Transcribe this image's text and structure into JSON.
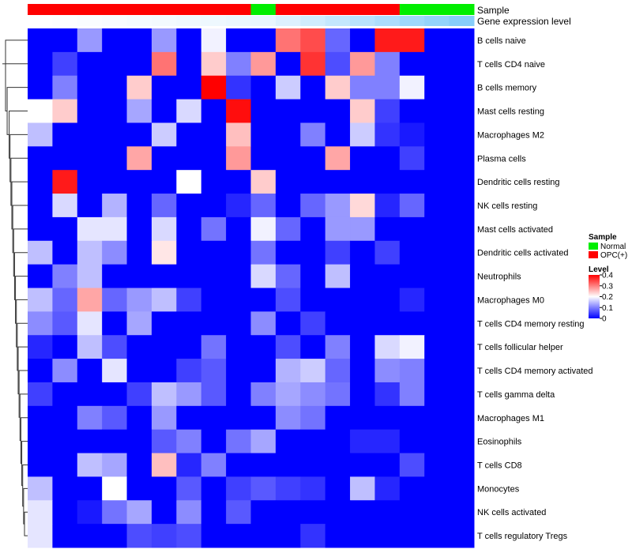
{
  "chart_data": {
    "type": "heatmap",
    "annotation_labels": {
      "sample": "Sample",
      "expression": "Gene expression level"
    },
    "rows": [
      "B cells naive",
      "T cells CD4 naive",
      "B cells memory",
      "Mast cells resting",
      "Macrophages M2",
      "Plasma cells",
      "Dendritic cells resting",
      "NK cells resting",
      "Mast cells activated",
      "Dendritic cells activated",
      "Neutrophils",
      "Macrophages M0",
      "T cells CD4 memory resting",
      "T cells follicular helper",
      "T cells CD4 memory activated",
      "T cells gamma delta",
      "Macrophages M1",
      "Eosinophils",
      "T cells CD8",
      "Monocytes",
      "NK cells activated",
      "T cells regulatory  Tregs"
    ],
    "sample_groups": [
      "OPC(+)",
      "OPC(+)",
      "OPC(+)",
      "OPC(+)",
      "OPC(+)",
      "OPC(+)",
      "OPC(+)",
      "OPC(+)",
      "OPC(+)",
      "Normal",
      "OPC(+)",
      "OPC(+)",
      "OPC(+)",
      "OPC(+)",
      "OPC(+)",
      "Normal",
      "Normal",
      "Normal"
    ],
    "expression_level": [
      0.1,
      0.2,
      0.3,
      0.4,
      0.5,
      0.6,
      0.7,
      0.8,
      0.9,
      1.0,
      1.5,
      2.0,
      2.5,
      3.0,
      3.5,
      4.0,
      4.5,
      5.0
    ],
    "values": [
      [
        0.0,
        0.0,
        0.12,
        0.0,
        0.0,
        0.12,
        0.0,
        0.19,
        0.0,
        0.0,
        0.31,
        0.34,
        0.08,
        0.0,
        0.38,
        0.38,
        0,
        0
      ],
      [
        0.0,
        0.05,
        0.0,
        0.0,
        0.0,
        0.31,
        0.0,
        0.24,
        0.1,
        0.28,
        0.0,
        0.36,
        0.06,
        0.28,
        0.1,
        0.0,
        0,
        0
      ],
      [
        0.0,
        0.1,
        0.0,
        0.0,
        0.24,
        0.0,
        0.0,
        0.4,
        0.04,
        0.0,
        0.16,
        0.0,
        0.24,
        0.1,
        0.1,
        0.19,
        0,
        0
      ],
      [
        0.2,
        0.24,
        0.0,
        0.0,
        0.13,
        0.0,
        0.17,
        0.0,
        0.39,
        0.0,
        0.0,
        0.0,
        0.0,
        0.24,
        0.05,
        0.0,
        0,
        0
      ],
      [
        0.15,
        0.0,
        0.0,
        0.0,
        0.0,
        0.16,
        0.0,
        0.0,
        0.25,
        0.0,
        0.0,
        0.1,
        0.0,
        0.16,
        0.04,
        0.02,
        0,
        0
      ],
      [
        0.0,
        0.0,
        0.0,
        0.0,
        0.27,
        0.0,
        0.0,
        0.0,
        0.28,
        0.0,
        0.0,
        0.0,
        0.27,
        0.0,
        0.0,
        0.05,
        0,
        0
      ],
      [
        0.0,
        0.38,
        0.0,
        0.0,
        0.0,
        0.0,
        0.2,
        0.0,
        0.0,
        0.24,
        0.0,
        0.0,
        0.0,
        0.0,
        0.0,
        0.0,
        0,
        0
      ],
      [
        0.0,
        0.17,
        0.0,
        0.14,
        0.0,
        0.08,
        0.0,
        0.0,
        0.03,
        0.08,
        0.0,
        0.08,
        0.12,
        0.23,
        0.03,
        0.08,
        0,
        0
      ],
      [
        0.0,
        0.0,
        0.18,
        0.18,
        0.0,
        0.17,
        0.0,
        0.09,
        0.0,
        0.19,
        0.08,
        0.0,
        0.12,
        0.12,
        0.0,
        0.0,
        0,
        0
      ],
      [
        0.15,
        0.0,
        0.15,
        0.11,
        0.0,
        0.22,
        0.0,
        0.0,
        0.0,
        0.09,
        0.0,
        0.0,
        0.05,
        0.0,
        0.05,
        0.0,
        0,
        0
      ],
      [
        0.0,
        0.1,
        0.15,
        0.0,
        0.0,
        0.0,
        0.0,
        0.0,
        0.0,
        0.17,
        0.08,
        0.0,
        0.15,
        0.0,
        0.0,
        0.0,
        0,
        0
      ],
      [
        0.15,
        0.08,
        0.27,
        0.08,
        0.12,
        0.15,
        0.05,
        0.0,
        0.0,
        0.0,
        0.06,
        0.0,
        0.0,
        0.0,
        0.0,
        0.03,
        0,
        0
      ],
      [
        0.11,
        0.07,
        0.18,
        0.0,
        0.13,
        0.0,
        0.0,
        0.0,
        0.0,
        0.11,
        0.0,
        0.05,
        0.0,
        0.0,
        0.0,
        0.0,
        0,
        0
      ],
      [
        0.03,
        0.0,
        0.15,
        0.06,
        0.0,
        0.0,
        0.0,
        0.09,
        0.0,
        0.0,
        0.06,
        0.0,
        0.1,
        0.0,
        0.17,
        0.19,
        0,
        0
      ],
      [
        0.0,
        0.11,
        0.0,
        0.18,
        0.0,
        0.0,
        0.05,
        0.07,
        0.0,
        0.0,
        0.14,
        0.16,
        0.08,
        0.0,
        0.11,
        0.1,
        0,
        0
      ],
      [
        0.05,
        0.0,
        0.0,
        0.0,
        0.05,
        0.15,
        0.12,
        0.07,
        0.0,
        0.1,
        0.13,
        0.11,
        0.09,
        0.0,
        0.04,
        0.1,
        0,
        0
      ],
      [
        0.0,
        0.0,
        0.1,
        0.07,
        0.0,
        0.12,
        0.0,
        0.0,
        0.0,
        0.0,
        0.11,
        0.09,
        0.0,
        0.0,
        0.0,
        0.0,
        0,
        0
      ],
      [
        0.0,
        0.0,
        0.0,
        0.0,
        0.0,
        0.07,
        0.1,
        0.0,
        0.09,
        0.13,
        0.0,
        0.0,
        0.0,
        0.03,
        0.03,
        0.0,
        0,
        0
      ],
      [
        0.0,
        0.0,
        0.15,
        0.13,
        0.0,
        0.25,
        0.03,
        0.1,
        0.0,
        0.0,
        0.0,
        0.0,
        0.0,
        0.0,
        0.0,
        0.06,
        0,
        0
      ],
      [
        0.15,
        0.0,
        0.0,
        0.2,
        0.0,
        0.0,
        0.07,
        0.0,
        0.05,
        0.07,
        0.05,
        0.04,
        0.0,
        0.15,
        0.03,
        0.0,
        0,
        0
      ],
      [
        0.18,
        0.0,
        0.02,
        0.09,
        0.13,
        0.0,
        0.11,
        0.0,
        0.07,
        0.0,
        0.0,
        0.0,
        0.0,
        0.0,
        0.0,
        0.0,
        0,
        0
      ],
      [
        0.18,
        0.0,
        0.0,
        0.0,
        0.06,
        0.05,
        0.06,
        0.0,
        0.0,
        0.0,
        0.0,
        0.04,
        0.0,
        0.0,
        0.0,
        0.0,
        0,
        0
      ]
    ],
    "legend_sample": {
      "title": "Sample",
      "items": [
        {
          "label": "Normal",
          "color": "#00ee00"
        },
        {
          "label": "OPC(+)",
          "color": "#ff0000"
        }
      ]
    },
    "legend_level": {
      "title": "Level",
      "ticks": [
        {
          "value": 0.4,
          "label": "0.4"
        },
        {
          "value": 0.3,
          "label": "0.3"
        },
        {
          "value": 0.2,
          "label": "0.2"
        },
        {
          "value": 0.1,
          "label": "0.1"
        },
        {
          "value": 0,
          "label": "0"
        }
      ],
      "range": [
        0,
        0.4
      ]
    },
    "colors": {
      "low": "#0000ff",
      "mid": "#ffffff",
      "high": "#ff0000",
      "midpoint": 0.2,
      "expr_low": "#ffffff",
      "expr_high": "#87cefa"
    }
  }
}
